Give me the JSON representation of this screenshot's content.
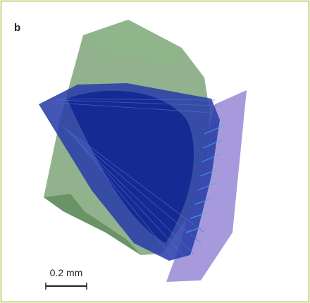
{
  "panel_label": "b",
  "scale_bar": {
    "label": "0.2 mm"
  }
}
